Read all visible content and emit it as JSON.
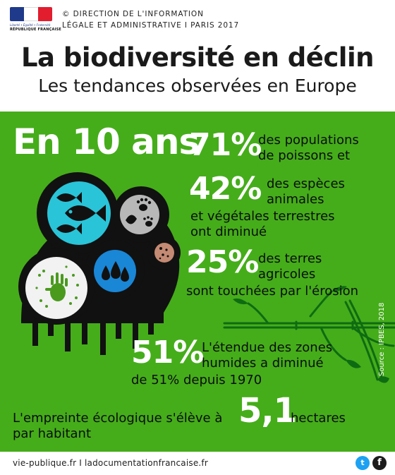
{
  "header": {
    "logo_text": {
      "motto": "Liberté • Égalité • Fraternité",
      "republic": "RÉPUBLIQUE FRANÇAISE"
    },
    "credit_line1": "© DIRECTION DE L'INFORMATION",
    "credit_line2": "LÉGALE ET ADMINISTRATIVE I PARIS 2017",
    "title": "La biodiversité en déclin",
    "subtitle": "Les tendances observées en Europe"
  },
  "stats": {
    "period": "En 10 ans",
    "fish": {
      "value": "71%",
      "text1": "des populations",
      "text2": "de poissons et"
    },
    "species": {
      "value": "42%",
      "text1": "des espèces",
      "text2": "animales",
      "text3": "et végétales terrestres",
      "text4": "ont diminué"
    },
    "land": {
      "value": "25%",
      "text1": "des terres",
      "text2": "agricoles",
      "text3": "sont touchées par l'érosion"
    },
    "wetlands": {
      "value": "51%",
      "text1": "L'étendue des zones",
      "text2": "humides a diminué",
      "text3": "de 51% depuis 1970"
    },
    "footprint": {
      "text1": "L'empreinte écologique s'élève à",
      "value": "5,1",
      "unit": "hectares",
      "text2": "par habitant"
    }
  },
  "source": "Source : IPBES, 2018",
  "footer": {
    "text": "vie-publique.fr I ladocumentationfrancaise.fr",
    "twitter": "t",
    "facebook": "f"
  },
  "icons": [
    "fish-icon",
    "paw-print-icon",
    "leaf-icon",
    "soil-icon",
    "water-drops-icon",
    "handprint-icon",
    "bamboo-icon",
    "twitter-icon",
    "facebook-icon"
  ],
  "colors": {
    "panel": "#45ad1a",
    "cyan": "#29c4d8",
    "blue": "#1a86d6",
    "black": "#111111",
    "white": "#ffffff"
  }
}
